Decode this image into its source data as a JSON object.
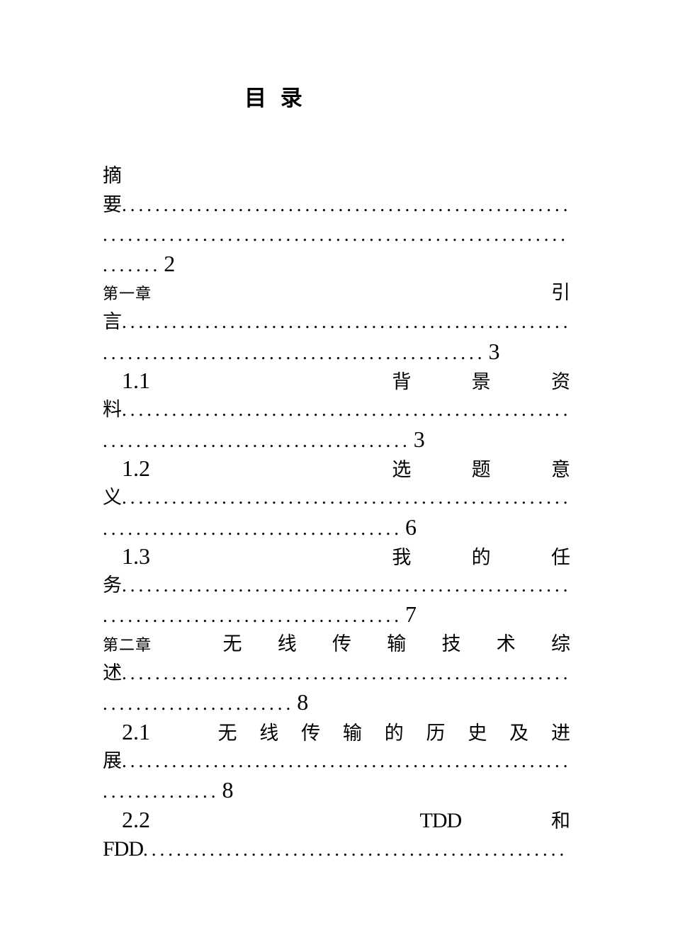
{
  "document": {
    "title": "目 录",
    "entries": [
      {
        "title": "摘要",
        "page": "2"
      },
      {
        "chapter": "第一章",
        "title": "引言",
        "page": "3"
      },
      {
        "section": "1.1",
        "title": "背景资料",
        "page": "3"
      },
      {
        "section": "1.2",
        "title": "选题意义",
        "page": "6"
      },
      {
        "section": "1.3",
        "title": "我的任务",
        "page": "7"
      },
      {
        "chapter": "第二章",
        "title": "无线传输技术综述",
        "page": "8"
      },
      {
        "section": "2.1",
        "title": "无线传输的历史及进展",
        "page": "8"
      },
      {
        "section": "2.2",
        "title": "TDD和FDD"
      }
    ],
    "lines": [
      {
        "text": "摘"
      },
      {
        "text": "要",
        "dots": "......................................................"
      },
      {
        "dots": "........................................................"
      },
      {
        "dots": ".......",
        "page": "2"
      },
      {
        "label": "第一章",
        "text": "引"
      },
      {
        "text": "言",
        "dots": "......................................................"
      },
      {
        "dots": "..............................................",
        "page": "3"
      },
      {
        "label": "1.1",
        "chars": [
          "背",
          "景",
          "资"
        ]
      },
      {
        "text": "料",
        "dots": "......................................................"
      },
      {
        "dots": ".....................................",
        "page": "3"
      },
      {
        "label": "1.2",
        "chars": [
          "选",
          "题",
          "意"
        ]
      },
      {
        "text": "义",
        "dots": "......................................................"
      },
      {
        "dots": "....................................",
        "page": "6"
      },
      {
        "label": "1.3",
        "chars": [
          "我",
          "的",
          "任"
        ]
      },
      {
        "text": "务",
        "dots": "......................................................"
      },
      {
        "dots": "....................................",
        "page": "7"
      },
      {
        "label": "第二章",
        "chars": [
          "无",
          "线",
          "传",
          "输",
          "技",
          "术",
          "综"
        ]
      },
      {
        "text": "述",
        "dots": "......................................................"
      },
      {
        "dots": ".......................",
        "page": "8"
      },
      {
        "label": "2.1",
        "chars": [
          "无",
          "线",
          "传",
          "输",
          "的",
          "历",
          "史",
          "及",
          "进"
        ]
      },
      {
        "text": "展",
        "dots": "......................................................"
      },
      {
        "dots": "..............",
        "page": "8"
      },
      {
        "label": "2.2",
        "chars": [
          "TDD",
          "和"
        ]
      },
      {
        "text": "FDD",
        "dots": "..................................................."
      }
    ]
  }
}
